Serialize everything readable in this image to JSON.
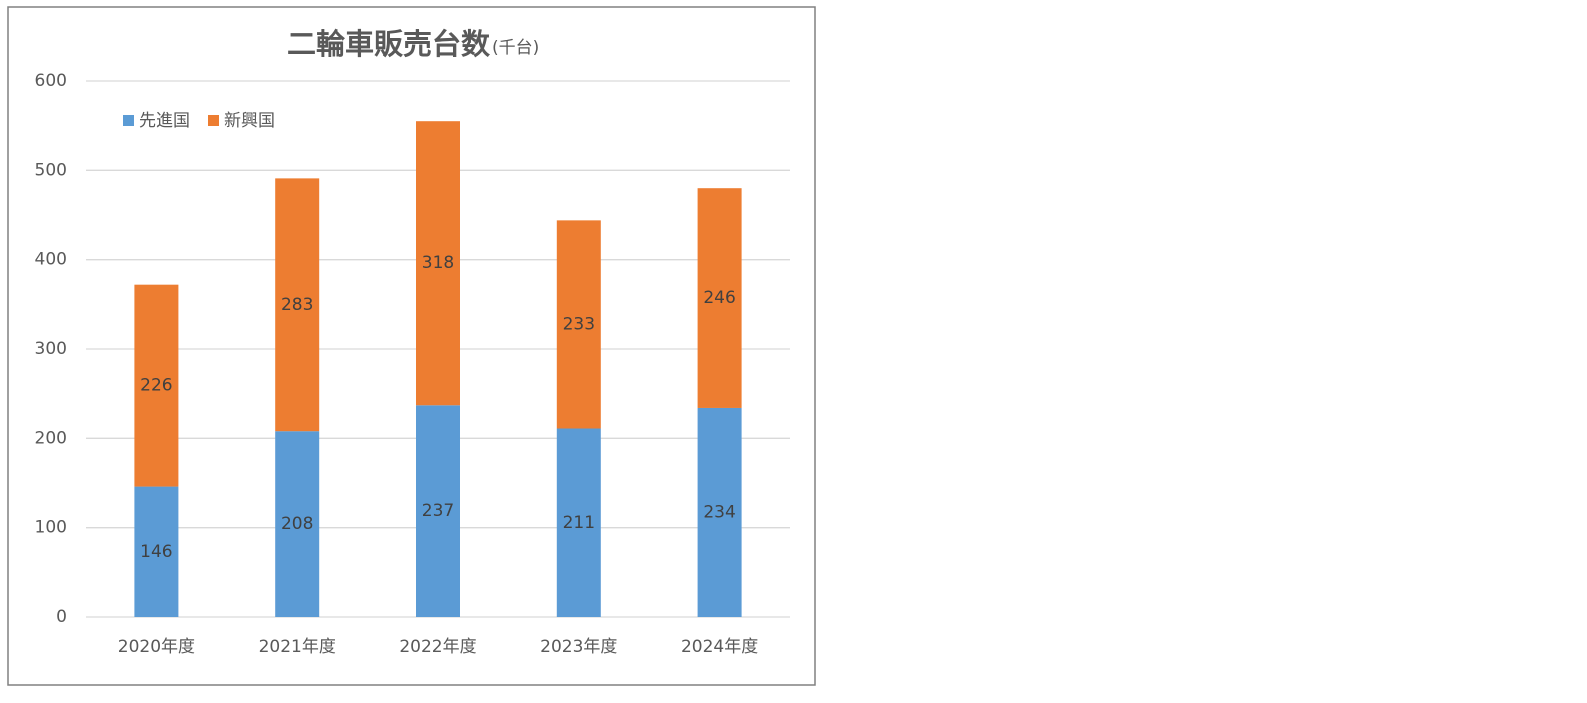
{
  "chart_data": {
    "type": "bar",
    "stacked": true,
    "title": "二輪車販売台数",
    "subtitle": "(千台)",
    "categories": [
      "2020年度",
      "2021年度",
      "2022年度",
      "2023年度",
      "2024年度"
    ],
    "series": [
      {
        "name": "先進国",
        "color": "#5b9bd5",
        "values": [
          146,
          208,
          237,
          211,
          234
        ]
      },
      {
        "name": "新興国",
        "color": "#ed7d31",
        "values": [
          226,
          283,
          318,
          233,
          246
        ]
      }
    ],
    "ylim": [
      0,
      600
    ],
    "yticks": [
      0,
      100,
      200,
      300,
      400,
      500,
      600
    ],
    "grid": true,
    "legend": "top-left"
  }
}
